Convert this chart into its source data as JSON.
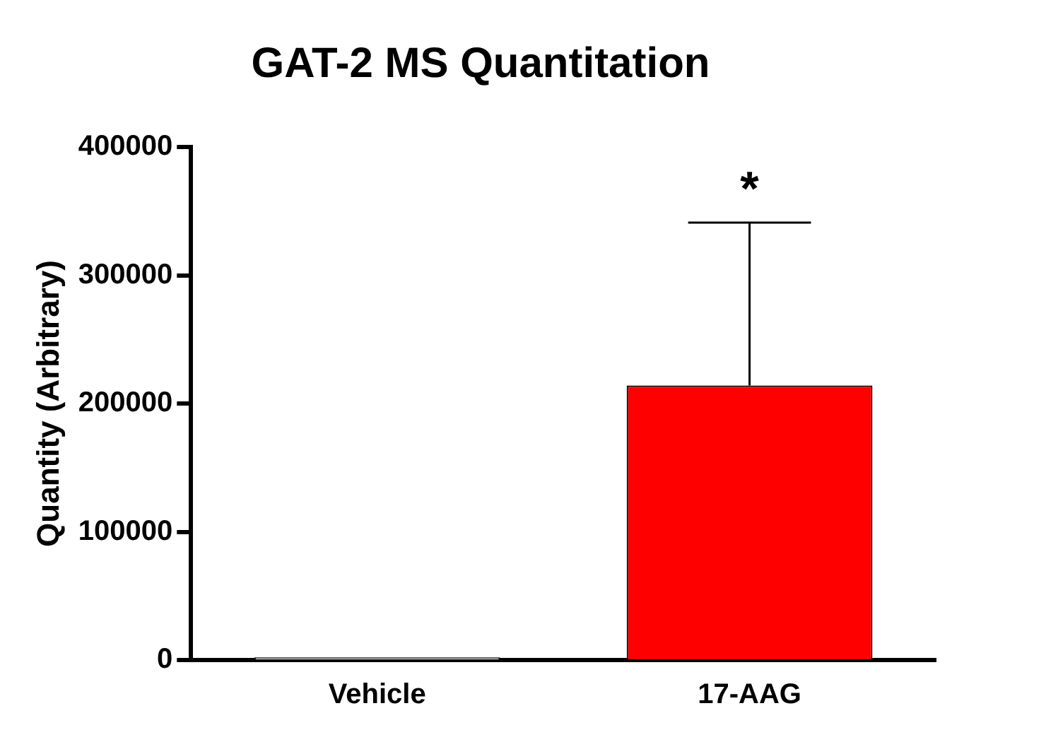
{
  "chart_data": {
    "type": "bar",
    "title": "GAT-2 MS Quantitation",
    "ylabel": "Quantity (Arbitrary)",
    "categories": [
      "Vehicle",
      "17-AAG"
    ],
    "values": [
      2000,
      214000
    ],
    "colors": [
      "#ffffff",
      "#ff0000"
    ],
    "errors": [
      null,
      127000
    ],
    "ylim": [
      0,
      400000
    ],
    "yticks": [
      0,
      100000,
      200000,
      300000,
      400000
    ],
    "grid": false,
    "legend": false,
    "annotations": [
      "*"
    ]
  }
}
